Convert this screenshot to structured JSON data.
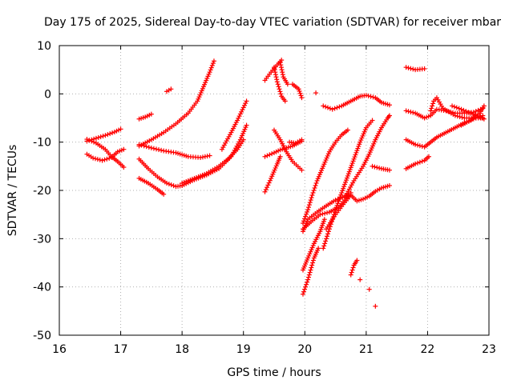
{
  "chart_data": {
    "type": "scatter",
    "title": "Day 175 of 2025, Sidereal Day-to-day VTEC variation (SDTVAR) for receiver mbar",
    "xlabel": "GPS time / hours",
    "ylabel": "SDTVAR / TECUs",
    "xlim": [
      16,
      23
    ],
    "ylim": [
      -50,
      10
    ],
    "xticks": [
      "16",
      "17",
      "18",
      "19",
      "20",
      "21",
      "22",
      "23"
    ],
    "yticks": [
      "10",
      "0",
      "-10",
      "-20",
      "-30",
      "-40",
      "-50"
    ],
    "grid": true,
    "marker": "+",
    "color": "#ff0000",
    "series": [
      {
        "points": [
          [
            16.45,
            -9.8
          ],
          [
            16.6,
            -9.2
          ],
          [
            16.75,
            -8.6
          ],
          [
            16.9,
            -7.9
          ],
          [
            17.0,
            -7.3
          ]
        ]
      },
      {
        "points": [
          [
            16.45,
            -9.4
          ],
          [
            16.6,
            -10.2
          ],
          [
            16.75,
            -11.5
          ],
          [
            16.85,
            -13.0
          ],
          [
            16.95,
            -14.0
          ],
          [
            17.05,
            -15.2
          ]
        ]
      },
      {
        "points": [
          [
            16.45,
            -12.5
          ],
          [
            16.55,
            -13.3
          ],
          [
            16.7,
            -13.8
          ],
          [
            16.85,
            -13.2
          ],
          [
            16.95,
            -12.0
          ],
          [
            17.05,
            -11.5
          ]
        ]
      },
      {
        "points": [
          [
            17.3,
            -5.2
          ],
          [
            17.4,
            -4.8
          ],
          [
            17.5,
            -4.2
          ]
        ]
      },
      {
        "points": [
          [
            17.3,
            -10.8
          ],
          [
            17.5,
            -9.5
          ],
          [
            17.7,
            -8.0
          ],
          [
            17.9,
            -6.2
          ],
          [
            18.1,
            -4.0
          ],
          [
            18.25,
            -1.5
          ],
          [
            18.35,
            1.5
          ],
          [
            18.45,
            4.5
          ],
          [
            18.52,
            6.8
          ]
        ]
      },
      {
        "points": [
          [
            17.3,
            -10.5
          ],
          [
            17.5,
            -11.2
          ],
          [
            17.7,
            -11.8
          ],
          [
            17.9,
            -12.2
          ],
          [
            18.1,
            -13.0
          ],
          [
            18.3,
            -13.2
          ],
          [
            18.45,
            -12.8
          ]
        ]
      },
      {
        "points": [
          [
            17.3,
            -13.5
          ],
          [
            17.45,
            -15.5
          ],
          [
            17.6,
            -17.2
          ],
          [
            17.75,
            -18.5
          ],
          [
            17.9,
            -19.2
          ],
          [
            18.0,
            -19.0
          ]
        ]
      },
      {
        "points": [
          [
            17.3,
            -17.5
          ],
          [
            17.45,
            -18.5
          ],
          [
            17.6,
            -19.8
          ],
          [
            17.7,
            -20.8
          ]
        ]
      },
      {
        "points": [
          [
            17.75,
            0.5
          ],
          [
            17.82,
            1.0
          ]
        ]
      },
      {
        "points": [
          [
            18.0,
            -18.5
          ],
          [
            18.2,
            -17.5
          ],
          [
            18.4,
            -16.5
          ],
          [
            18.6,
            -15.0
          ],
          [
            18.75,
            -13.5
          ],
          [
            18.9,
            -11.5
          ],
          [
            19.0,
            -9.5
          ]
        ]
      },
      {
        "points": [
          [
            18.0,
            -19.0
          ],
          [
            18.2,
            -17.8
          ],
          [
            18.4,
            -16.8
          ],
          [
            18.6,
            -15.5
          ],
          [
            18.8,
            -13.0
          ],
          [
            18.95,
            -9.5
          ],
          [
            19.05,
            -6.5
          ]
        ]
      },
      {
        "points": [
          [
            18.65,
            -11.5
          ],
          [
            18.8,
            -8.0
          ],
          [
            18.9,
            -5.5
          ],
          [
            19.05,
            -1.5
          ]
        ]
      },
      {
        "points": [
          [
            19.35,
            -20.3
          ],
          [
            19.45,
            -17.5
          ],
          [
            19.55,
            -14.5
          ],
          [
            19.6,
            -13.0
          ]
        ]
      },
      {
        "points": [
          [
            19.35,
            -13.0
          ],
          [
            19.5,
            -12.2
          ],
          [
            19.6,
            -11.6
          ],
          [
            19.8,
            -10.8
          ],
          [
            19.95,
            -9.8
          ]
        ]
      },
      {
        "points": [
          [
            19.5,
            -7.5
          ],
          [
            19.6,
            -9.5
          ],
          [
            19.7,
            -12.0
          ],
          [
            19.8,
            -14.0
          ],
          [
            19.95,
            -15.8
          ]
        ]
      },
      {
        "points": [
          [
            19.35,
            2.8
          ],
          [
            19.45,
            4.5
          ],
          [
            19.55,
            6.0
          ],
          [
            19.62,
            7.0
          ]
        ]
      },
      {
        "points": [
          [
            19.5,
            5.5
          ],
          [
            19.55,
            2.5
          ],
          [
            19.62,
            -0.5
          ],
          [
            19.68,
            -1.5
          ]
        ]
      },
      {
        "points": [
          [
            19.6,
            6.5
          ],
          [
            19.65,
            3.5
          ],
          [
            19.72,
            2.0
          ]
        ]
      },
      {
        "points": [
          [
            19.8,
            2.0
          ],
          [
            19.9,
            1.0
          ],
          [
            19.95,
            -0.8
          ]
        ]
      },
      {
        "points": [
          [
            19.75,
            -10.0
          ],
          [
            19.85,
            -10.2
          ],
          [
            19.95,
            -9.5
          ]
        ]
      },
      {
        "points": [
          [
            19.97,
            -28.5
          ],
          [
            20.05,
            -26.0
          ],
          [
            20.2,
            -24.5
          ],
          [
            20.35,
            -23.2
          ],
          [
            20.5,
            -22.0
          ],
          [
            20.65,
            -21.2
          ],
          [
            20.75,
            -21.0
          ],
          [
            20.85,
            -22.2
          ],
          [
            20.95,
            -21.8
          ],
          [
            21.05,
            -21.2
          ],
          [
            21.15,
            -20.2
          ],
          [
            21.25,
            -19.5
          ],
          [
            21.38,
            -19.0
          ]
        ]
      },
      {
        "points": [
          [
            19.97,
            -28.0
          ],
          [
            20.1,
            -26.5
          ],
          [
            20.25,
            -25.0
          ],
          [
            20.4,
            -24.5
          ],
          [
            20.55,
            -23.5
          ],
          [
            20.65,
            -22.0
          ],
          [
            20.75,
            -20.5
          ]
        ]
      },
      {
        "points": [
          [
            19.97,
            -26.8
          ],
          [
            20.05,
            -24.0
          ],
          [
            20.12,
            -21.0
          ],
          [
            20.2,
            -18.0
          ],
          [
            20.3,
            -15.0
          ],
          [
            20.4,
            -12.0
          ],
          [
            20.5,
            -10.0
          ],
          [
            20.6,
            -8.5
          ],
          [
            20.7,
            -7.5
          ]
        ]
      },
      {
        "points": [
          [
            19.97,
            -36.5
          ],
          [
            20.05,
            -34.0
          ],
          [
            20.15,
            -31.0
          ],
          [
            20.25,
            -28.5
          ],
          [
            20.32,
            -26.0
          ]
        ]
      },
      {
        "points": [
          [
            19.97,
            -41.5
          ],
          [
            20.05,
            -38.5
          ],
          [
            20.15,
            -34.0
          ],
          [
            20.22,
            -32.0
          ]
        ]
      },
      {
        "points": [
          [
            20.3,
            -32.0
          ],
          [
            20.4,
            -28.0
          ],
          [
            20.5,
            -24.0
          ],
          [
            20.6,
            -20.5
          ],
          [
            20.7,
            -17.0
          ],
          [
            20.8,
            -13.5
          ],
          [
            20.9,
            -10.0
          ],
          [
            21.0,
            -7.0
          ],
          [
            21.1,
            -5.5
          ]
        ]
      },
      {
        "points": [
          [
            20.35,
            -28.0
          ],
          [
            20.5,
            -25.0
          ],
          [
            20.65,
            -22.5
          ],
          [
            20.75,
            -21.0
          ]
        ]
      },
      {
        "points": [
          [
            20.65,
            -21.5
          ],
          [
            20.8,
            -18.0
          ],
          [
            20.95,
            -15.0
          ],
          [
            21.05,
            -12.5
          ],
          [
            21.15,
            -9.5
          ],
          [
            21.25,
            -7.0
          ],
          [
            21.35,
            -5.0
          ],
          [
            21.38,
            -4.5
          ]
        ]
      },
      {
        "points": [
          [
            20.3,
            -2.5
          ],
          [
            20.45,
            -3.2
          ],
          [
            20.6,
            -2.5
          ],
          [
            20.75,
            -1.5
          ],
          [
            20.9,
            -0.5
          ],
          [
            21.0,
            -0.3
          ],
          [
            21.15,
            -0.8
          ],
          [
            21.25,
            -1.8
          ],
          [
            21.38,
            -2.3
          ]
        ]
      },
      {
        "points": [
          [
            20.18,
            0.2
          ]
        ]
      },
      {
        "points": [
          [
            20.75,
            -37.5
          ],
          [
            20.8,
            -35.5
          ],
          [
            20.85,
            -34.5
          ]
        ]
      },
      {
        "points": [
          [
            20.9,
            -38.5
          ]
        ]
      },
      {
        "points": [
          [
            21.05,
            -40.5
          ]
        ]
      },
      {
        "points": [
          [
            21.15,
            -44.0
          ]
        ]
      },
      {
        "points": [
          [
            21.1,
            -15.0
          ],
          [
            21.25,
            -15.5
          ],
          [
            21.38,
            -15.8
          ]
        ]
      },
      {
        "points": [
          [
            21.65,
            5.5
          ],
          [
            21.8,
            5.0
          ],
          [
            21.95,
            5.2
          ]
        ]
      },
      {
        "points": [
          [
            21.65,
            -3.5
          ],
          [
            21.8,
            -4.0
          ],
          [
            21.95,
            -5.0
          ],
          [
            22.05,
            -4.5
          ],
          [
            22.15,
            -3.2
          ],
          [
            22.3,
            -3.5
          ],
          [
            22.45,
            -4.0
          ],
          [
            22.6,
            -4.0
          ],
          [
            22.75,
            -3.8
          ],
          [
            22.9,
            -3.0
          ]
        ]
      },
      {
        "points": [
          [
            21.65,
            -9.5
          ],
          [
            21.8,
            -10.5
          ],
          [
            21.95,
            -11.0
          ],
          [
            22.05,
            -10.0
          ],
          [
            22.15,
            -9.0
          ],
          [
            22.3,
            -8.0
          ],
          [
            22.45,
            -7.0
          ],
          [
            22.6,
            -6.0
          ],
          [
            22.75,
            -5.2
          ],
          [
            22.9,
            -4.5
          ]
        ]
      },
      {
        "points": [
          [
            21.65,
            -15.5
          ],
          [
            21.8,
            -14.5
          ],
          [
            21.95,
            -13.8
          ],
          [
            22.02,
            -13.0
          ]
        ]
      },
      {
        "points": [
          [
            22.05,
            -3.5
          ],
          [
            22.1,
            -1.5
          ],
          [
            22.15,
            -0.8
          ],
          [
            22.25,
            -3.0
          ],
          [
            22.45,
            -4.5
          ],
          [
            22.6,
            -5.0
          ],
          [
            22.75,
            -5.0
          ],
          [
            22.9,
            -5.0
          ]
        ]
      },
      {
        "points": [
          [
            22.4,
            -2.5
          ],
          [
            22.55,
            -3.2
          ],
          [
            22.7,
            -4.0
          ],
          [
            22.85,
            -4.8
          ],
          [
            22.92,
            -5.2
          ]
        ]
      },
      {
        "points": [
          [
            22.55,
            -6.5
          ],
          [
            22.7,
            -5.5
          ],
          [
            22.85,
            -4.0
          ],
          [
            22.92,
            -2.5
          ]
        ]
      }
    ]
  }
}
